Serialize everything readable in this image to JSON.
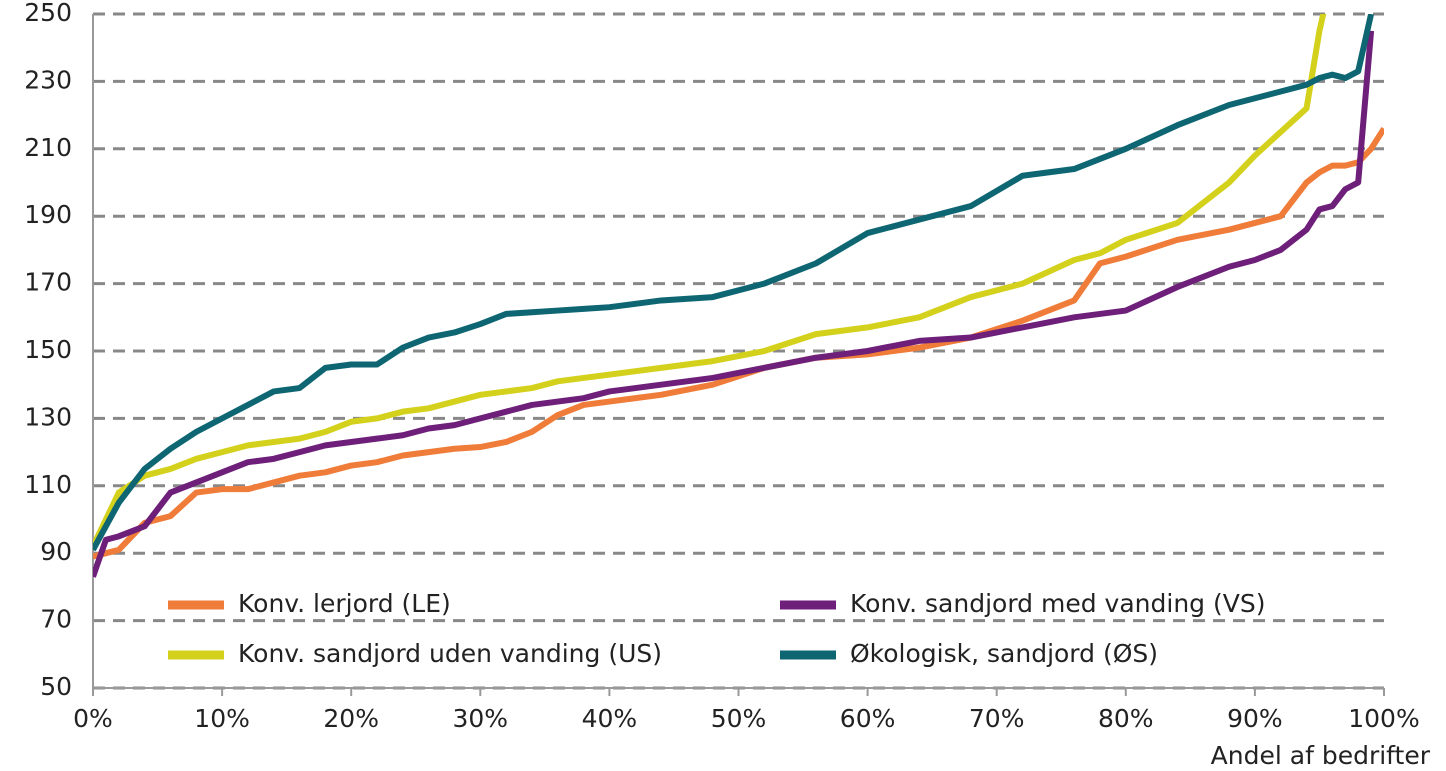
{
  "chart_data": {
    "type": "line",
    "x_label": "Andel af bedrifter",
    "x": [
      0,
      1,
      2,
      4,
      6,
      8,
      10,
      12,
      14,
      16,
      18,
      20,
      22,
      24,
      26,
      28,
      30,
      32,
      34,
      36,
      38,
      40,
      44,
      48,
      52,
      56,
      60,
      64,
      68,
      72,
      76,
      78,
      80,
      84,
      88,
      90,
      92,
      94,
      95,
      96,
      97,
      98,
      99,
      100
    ],
    "series": [
      {
        "name": "Konv. lerjord (LE)",
        "color": "#f07c3a",
        "values": [
          89,
          90,
          91,
          99,
          101,
          108,
          109,
          109,
          111,
          113,
          114,
          116,
          117,
          119,
          120,
          121,
          121.5,
          123,
          126,
          131,
          134,
          135,
          137,
          140,
          145,
          148,
          149,
          151,
          154,
          159,
          165,
          176,
          178,
          183,
          186,
          188,
          190,
          200,
          203,
          205,
          205,
          206,
          210,
          216
        ]
      },
      {
        "name": "Konv. sandjord uden vanding (US)",
        "color": "#d4d11c",
        "values": [
          92,
          100,
          108,
          113,
          115,
          118,
          120,
          122,
          123,
          124,
          126,
          129,
          130,
          132,
          133,
          135,
          137,
          138,
          139,
          141,
          142,
          143,
          145,
          147,
          150,
          155,
          157,
          160,
          166,
          170,
          177,
          179,
          183,
          188,
          200,
          208,
          215,
          222,
          245,
          262,
          null,
          null,
          null,
          null
        ]
      },
      {
        "name": "Konv. sandjord med vanding (VS)",
        "color": "#6e1f7a",
        "values": [
          83,
          94,
          95,
          98,
          108,
          111,
          114,
          117,
          118,
          120,
          122,
          123,
          124,
          125,
          127,
          128,
          130,
          132,
          134,
          135,
          136,
          138,
          140,
          142,
          145,
          148,
          150,
          153,
          154,
          157,
          160,
          161,
          162,
          169,
          175,
          177,
          180,
          186,
          192,
          193,
          198,
          200,
          245,
          null
        ]
      },
      {
        "name": "Økologisk, sandjord (ØS)",
        "color": "#0e6673",
        "values": [
          91,
          98,
          105,
          115,
          121,
          126,
          130,
          134,
          138,
          139,
          145,
          146,
          146,
          151,
          154,
          155.5,
          158,
          161,
          161.5,
          162,
          162.5,
          163,
          165,
          166,
          170,
          176,
          185,
          189,
          193,
          202,
          204,
          207,
          210,
          217,
          223,
          225,
          227,
          229,
          231,
          232,
          231,
          233,
          250,
          null
        ]
      }
    ],
    "xlim": [
      0,
      100
    ],
    "xticks": [
      {
        "value": 0,
        "label": "0%"
      },
      {
        "value": 10,
        "label": "10%"
      },
      {
        "value": 20,
        "label": "20%"
      },
      {
        "value": 30,
        "label": "30%"
      },
      {
        "value": 40,
        "label": "40%"
      },
      {
        "value": 50,
        "label": "50%"
      },
      {
        "value": 60,
        "label": "60%"
      },
      {
        "value": 70,
        "label": "70%"
      },
      {
        "value": 80,
        "label": "80%"
      },
      {
        "value": 90,
        "label": "90%"
      },
      {
        "value": 100,
        "label": "100%"
      }
    ],
    "ylim": [
      50,
      250
    ],
    "yticks": [
      50,
      70,
      90,
      110,
      130,
      150,
      170,
      190,
      210,
      230,
      250
    ],
    "grid": true
  }
}
